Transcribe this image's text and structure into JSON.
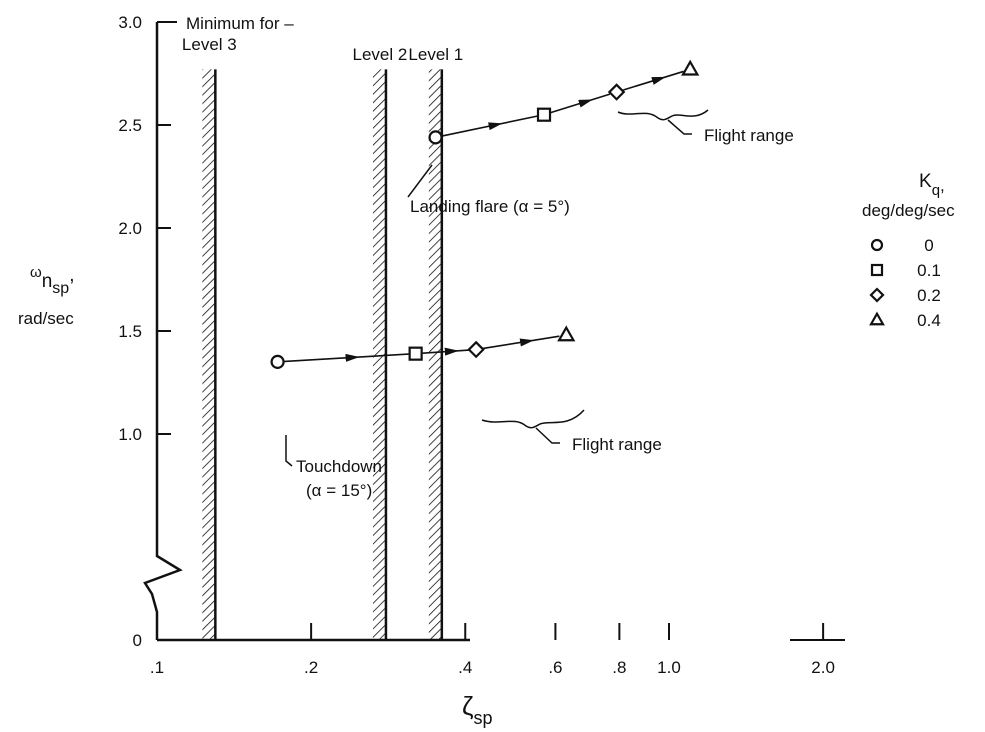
{
  "chart_data": {
    "type": "scatter",
    "title": "",
    "x_axis": {
      "label_main": "ζ",
      "label_sub": "sp",
      "scale": "log",
      "ticks": [
        {
          "value": 0.1,
          "label": ".1"
        },
        {
          "value": 0.2,
          "label": ".2"
        },
        {
          "value": 0.4,
          "label": ".4"
        },
        {
          "value": 0.6,
          "label": ".6"
        },
        {
          "value": 0.8,
          "label": ".8"
        },
        {
          "value": 1.0,
          "label": "1.0"
        },
        {
          "value": 2.0,
          "label": "2.0"
        }
      ]
    },
    "y_axis": {
      "label_line1_main": "ω",
      "label_line1_sub": "n",
      "label_line1_subsub": "sp",
      "label_line1_suffix": ",",
      "label_line2": "rad/sec",
      "ylim": [
        0,
        3.0
      ],
      "broken_axis": true,
      "ticks": [
        {
          "value": 0,
          "label": "0"
        },
        {
          "value": 1.0,
          "label": "1.0"
        },
        {
          "value": 1.5,
          "label": "1.5"
        },
        {
          "value": 2.0,
          "label": "2.0"
        },
        {
          "value": 2.5,
          "label": "2.5"
        },
        {
          "value": 3.0,
          "label": "3.0"
        }
      ]
    },
    "boundaries": {
      "header": "Minimum for –",
      "lines": [
        {
          "name": "Level 3",
          "zeta": 0.13
        },
        {
          "name": "Level 2",
          "zeta": 0.28
        },
        {
          "name": "Level 1",
          "zeta": 0.36
        }
      ]
    },
    "series": [
      {
        "name": "Landing flare",
        "label": "Landing flare (α = 5°)",
        "range_label": "Flight range",
        "points": [
          {
            "kq": "0",
            "marker": "circle",
            "x": 0.35,
            "y": 2.44
          },
          {
            "kq": "0.1",
            "marker": "square",
            "x": 0.57,
            "y": 2.55
          },
          {
            "kq": "0.2",
            "marker": "diamond",
            "x": 0.79,
            "y": 2.66
          },
          {
            "kq": "0.4",
            "marker": "triangle",
            "x": 1.1,
            "y": 2.77
          }
        ]
      },
      {
        "name": "Touchdown",
        "label_line1": "Touchdown",
        "label_line2": "(α = 15°)",
        "range_label": "Flight range",
        "points": [
          {
            "kq": "0",
            "marker": "circle",
            "x": 0.172,
            "y": 1.35
          },
          {
            "kq": "0.1",
            "marker": "square",
            "x": 0.32,
            "y": 1.39
          },
          {
            "kq": "0.2",
            "marker": "diamond",
            "x": 0.42,
            "y": 1.41
          },
          {
            "kq": "0.4",
            "marker": "triangle",
            "x": 0.63,
            "y": 1.48
          }
        ]
      }
    ],
    "legend": {
      "title_main": "K",
      "title_sub": "q",
      "title_suffix": ",",
      "subtitle": "deg/deg/sec",
      "placement": "right",
      "entries": [
        {
          "marker": "circle",
          "label": "0"
        },
        {
          "marker": "square",
          "label": "0.1"
        },
        {
          "marker": "diamond",
          "label": "0.2"
        },
        {
          "marker": "triangle",
          "label": "0.4"
        }
      ]
    },
    "colors": {
      "ink": "#111111",
      "background": "#ffffff"
    }
  }
}
